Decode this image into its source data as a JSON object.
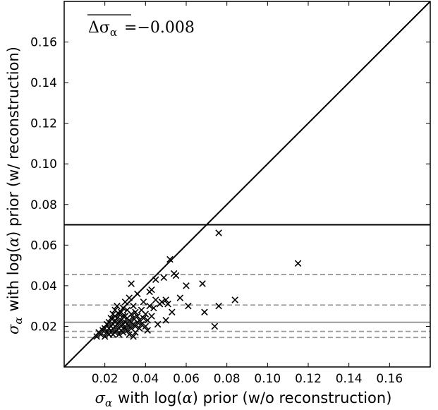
{
  "chart_data": {
    "type": "scatter",
    "xlabel": {
      "symbol": "σ",
      "subscript": "α",
      "text_before_paren": "with log(",
      "paren_symbol": "α",
      "text_after_paren": ") prior (w/o reconstruction)"
    },
    "ylabel": {
      "symbol": "σ",
      "subscript": "α",
      "text_before_paren": "with log(",
      "paren_symbol": "α",
      "text_after_paren": ") prior (w/ reconstruction)"
    },
    "annotation": {
      "delta": "Δσ",
      "subscript": "α",
      "equals": "=",
      "value": "−0.008"
    },
    "xlim": [
      0.0,
      0.18
    ],
    "ylim": [
      0.0,
      0.18
    ],
    "xticks": [
      0.02,
      0.04,
      0.06,
      0.08,
      0.1,
      0.12,
      0.14,
      0.16
    ],
    "xtick_labels": [
      "0.02",
      "0.04",
      "0.06",
      "0.08",
      "0.10",
      "0.12",
      "0.14",
      "0.16"
    ],
    "yticks": [
      0.02,
      0.04,
      0.06,
      0.08,
      0.1,
      0.12,
      0.14,
      0.16
    ],
    "ytick_labels": [
      "0.02",
      "0.04",
      "0.06",
      "0.08",
      "0.10",
      "0.12",
      "0.14",
      "0.16"
    ],
    "marker": "x",
    "colors": {
      "points": "#000000",
      "diagonal": "#000000",
      "solid_black_hline": "#000000",
      "solid_gray_hline": "#999999",
      "dashed_gray_hlines": "#999999"
    },
    "reference_lines": {
      "diagonal": true,
      "solid_black_hline_y": 0.07,
      "solid_gray_hline_y": 0.022,
      "dashed_gray_hlines_y": [
        0.0455,
        0.0305,
        0.0175,
        0.0145
      ]
    },
    "points": [
      [
        0.016,
        0.015
      ],
      [
        0.017,
        0.017
      ],
      [
        0.018,
        0.016
      ],
      [
        0.019,
        0.018
      ],
      [
        0.02,
        0.015
      ],
      [
        0.02,
        0.019
      ],
      [
        0.021,
        0.017
      ],
      [
        0.021,
        0.021
      ],
      [
        0.022,
        0.016
      ],
      [
        0.022,
        0.019
      ],
      [
        0.022,
        0.022
      ],
      [
        0.023,
        0.018
      ],
      [
        0.023,
        0.02
      ],
      [
        0.023,
        0.024
      ],
      [
        0.024,
        0.016
      ],
      [
        0.024,
        0.019
      ],
      [
        0.024,
        0.021
      ],
      [
        0.024,
        0.026
      ],
      [
        0.025,
        0.017
      ],
      [
        0.025,
        0.02
      ],
      [
        0.025,
        0.023
      ],
      [
        0.025,
        0.028
      ],
      [
        0.026,
        0.018
      ],
      [
        0.026,
        0.021
      ],
      [
        0.026,
        0.024
      ],
      [
        0.026,
        0.03
      ],
      [
        0.027,
        0.016
      ],
      [
        0.027,
        0.019
      ],
      [
        0.027,
        0.022
      ],
      [
        0.027,
        0.026
      ],
      [
        0.028,
        0.018
      ],
      [
        0.028,
        0.02
      ],
      [
        0.028,
        0.023
      ],
      [
        0.028,
        0.027
      ],
      [
        0.029,
        0.017
      ],
      [
        0.029,
        0.021
      ],
      [
        0.029,
        0.025
      ],
      [
        0.029,
        0.029
      ],
      [
        0.03,
        0.019
      ],
      [
        0.03,
        0.022
      ],
      [
        0.03,
        0.025
      ],
      [
        0.03,
        0.032
      ],
      [
        0.031,
        0.018
      ],
      [
        0.031,
        0.021
      ],
      [
        0.031,
        0.024
      ],
      [
        0.031,
        0.028
      ],
      [
        0.032,
        0.016
      ],
      [
        0.032,
        0.02
      ],
      [
        0.032,
        0.023
      ],
      [
        0.032,
        0.034
      ],
      [
        0.033,
        0.019
      ],
      [
        0.033,
        0.022
      ],
      [
        0.033,
        0.026
      ],
      [
        0.033,
        0.041
      ],
      [
        0.034,
        0.015
      ],
      [
        0.034,
        0.021
      ],
      [
        0.034,
        0.024
      ],
      [
        0.034,
        0.03
      ],
      [
        0.035,
        0.017
      ],
      [
        0.035,
        0.02
      ],
      [
        0.035,
        0.027
      ],
      [
        0.036,
        0.022
      ],
      [
        0.036,
        0.025
      ],
      [
        0.036,
        0.036
      ],
      [
        0.037,
        0.019
      ],
      [
        0.037,
        0.023
      ],
      [
        0.038,
        0.021
      ],
      [
        0.038,
        0.028
      ],
      [
        0.039,
        0.024
      ],
      [
        0.039,
        0.032
      ],
      [
        0.04,
        0.02
      ],
      [
        0.04,
        0.026
      ],
      [
        0.041,
        0.018
      ],
      [
        0.041,
        0.023
      ],
      [
        0.042,
        0.03
      ],
      [
        0.042,
        0.037
      ],
      [
        0.043,
        0.025
      ],
      [
        0.043,
        0.038
      ],
      [
        0.044,
        0.029
      ],
      [
        0.045,
        0.033
      ],
      [
        0.045,
        0.043
      ],
      [
        0.046,
        0.021
      ],
      [
        0.047,
        0.031
      ],
      [
        0.048,
        0.032
      ],
      [
        0.049,
        0.044
      ],
      [
        0.05,
        0.023
      ],
      [
        0.05,
        0.033
      ],
      [
        0.051,
        0.031
      ],
      [
        0.052,
        0.053
      ],
      [
        0.053,
        0.027
      ],
      [
        0.054,
        0.046
      ],
      [
        0.055,
        0.045
      ],
      [
        0.057,
        0.034
      ],
      [
        0.06,
        0.04
      ],
      [
        0.061,
        0.03
      ],
      [
        0.068,
        0.041
      ],
      [
        0.069,
        0.027
      ],
      [
        0.074,
        0.02
      ],
      [
        0.076,
        0.03
      ],
      [
        0.076,
        0.066
      ],
      [
        0.084,
        0.033
      ],
      [
        0.115,
        0.051
      ]
    ]
  }
}
